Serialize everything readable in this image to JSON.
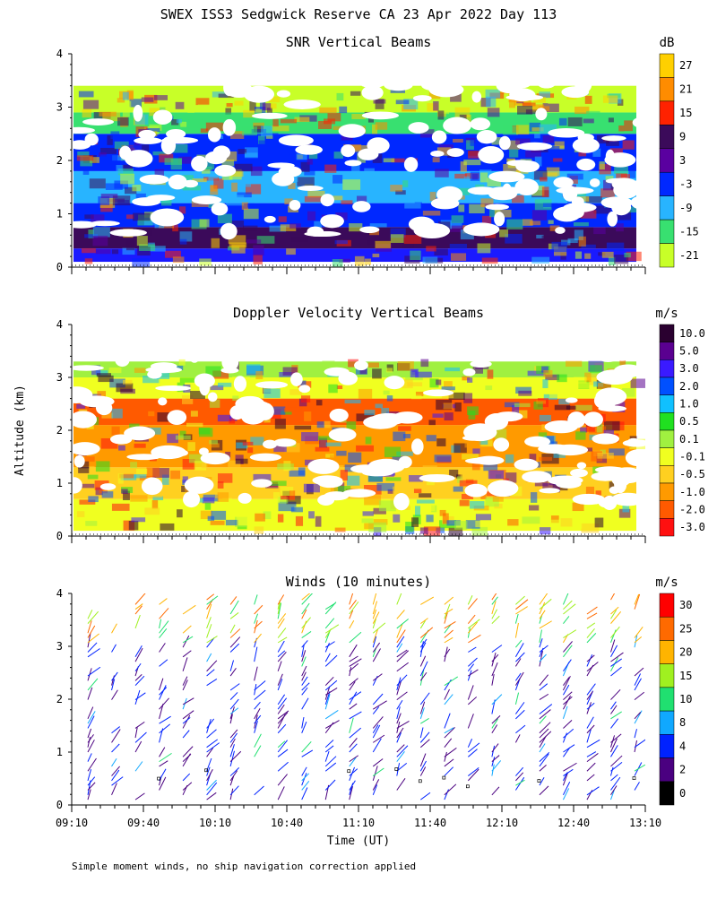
{
  "figure_title": "SWEX ISS3 Sedgwick Reserve CA  23 Apr 2022 Day 113",
  "shared_ylabel": "Altitude (km)",
  "shared_xlabel": "Time (UT)",
  "footnote": "Simple moment winds, no ship navigation correction applied",
  "chart_data": [
    {
      "type": "heatmap",
      "title": "SNR Vertical Beams",
      "colorbar_unit": "dB",
      "colorbar_ticks": [
        "27",
        "21",
        "15",
        "9",
        "3",
        "-3",
        "-9",
        "-15",
        "-21"
      ],
      "colorbar_colors": [
        "#ffd000",
        "#ff8c00",
        "#ff2200",
        "#3b0a5a",
        "#5a00a0",
        "#0028ff",
        "#28b4ff",
        "#38e070",
        "#c8ff28"
      ],
      "x_ticks": [],
      "y_ticks": [
        "0",
        "1",
        "2",
        "3",
        "4"
      ],
      "ylim": [
        0,
        4
      ],
      "layers": [
        {
          "ymin": 0.1,
          "ymax": 0.35,
          "color": "#1a1aff",
          "level": "-3"
        },
        {
          "ymin": 0.35,
          "ymax": 0.75,
          "color": "#3b0a5a",
          "level": "9"
        },
        {
          "ymin": 0.75,
          "ymax": 1.2,
          "color": "#0028ff",
          "level": "-3"
        },
        {
          "ymin": 1.2,
          "ymax": 1.8,
          "color": "#28b4ff",
          "level": "-9"
        },
        {
          "ymin": 1.8,
          "ymax": 2.5,
          "color": "#0028ff",
          "level": "-3"
        },
        {
          "ymin": 2.5,
          "ymax": 2.9,
          "color": "#38e070",
          "level": "-15"
        },
        {
          "ymin": 2.9,
          "ymax": 3.4,
          "color": "#c8ff28",
          "level": "-21"
        }
      ]
    },
    {
      "type": "heatmap",
      "title": "Doppler Velocity Vertical Beams",
      "colorbar_unit": "m/s",
      "colorbar_ticks": [
        "10.0",
        "5.0",
        "3.0",
        "2.0",
        "1.0",
        "0.5",
        "0.1",
        "-0.1",
        "-0.5",
        "-1.0",
        "-2.0",
        "-3.0"
      ],
      "colorbar_colors": [
        "#2a0030",
        "#5a0090",
        "#3a1aff",
        "#0050ff",
        "#10c0ff",
        "#20e020",
        "#a0f040",
        "#f0ff20",
        "#ffd020",
        "#ff9a00",
        "#ff5a00",
        "#ff1010"
      ],
      "x_ticks": [],
      "y_ticks": [
        "0",
        "1",
        "2",
        "3",
        "4"
      ],
      "ylim": [
        0,
        4
      ],
      "layers": [
        {
          "ymin": 0.1,
          "ymax": 0.7,
          "color": "#f0ff20",
          "level": "-0.1"
        },
        {
          "ymin": 0.7,
          "ymax": 1.3,
          "color": "#ffd020",
          "level": "-0.5"
        },
        {
          "ymin": 1.3,
          "ymax": 2.1,
          "color": "#ff9a00",
          "level": "-1.0"
        },
        {
          "ymin": 2.1,
          "ymax": 2.6,
          "color": "#ff5a00",
          "level": "-2.0"
        },
        {
          "ymin": 2.6,
          "ymax": 3.0,
          "color": "#f0ff20",
          "level": "-0.1"
        },
        {
          "ymin": 3.0,
          "ymax": 3.3,
          "color": "#a0f040",
          "level": "0.1"
        }
      ]
    },
    {
      "type": "scatter",
      "title": "Winds (10 minutes)",
      "colorbar_unit": "m/s",
      "colorbar_ticks": [
        "30",
        "25",
        "20",
        "15",
        "10",
        "8",
        "4",
        "2",
        "0"
      ],
      "colorbar_colors": [
        "#ff0000",
        "#ff6a00",
        "#ffb400",
        "#a0f020",
        "#20e070",
        "#10a8ff",
        "#0022ff",
        "#4a0080",
        "#000000"
      ],
      "x_ticks": [
        "09:10",
        "09:40",
        "10:10",
        "10:40",
        "11:10",
        "11:40",
        "12:10",
        "12:40",
        "13:10"
      ],
      "y_ticks": [
        "0",
        "1",
        "2",
        "3",
        "4"
      ],
      "ylim": [
        0,
        4
      ],
      "description": "wind barbs every 10 min from 09:10 to 13:10 UT, mostly 2-8 m/s below 3 km, 15-30 m/s above 3 km"
    }
  ]
}
